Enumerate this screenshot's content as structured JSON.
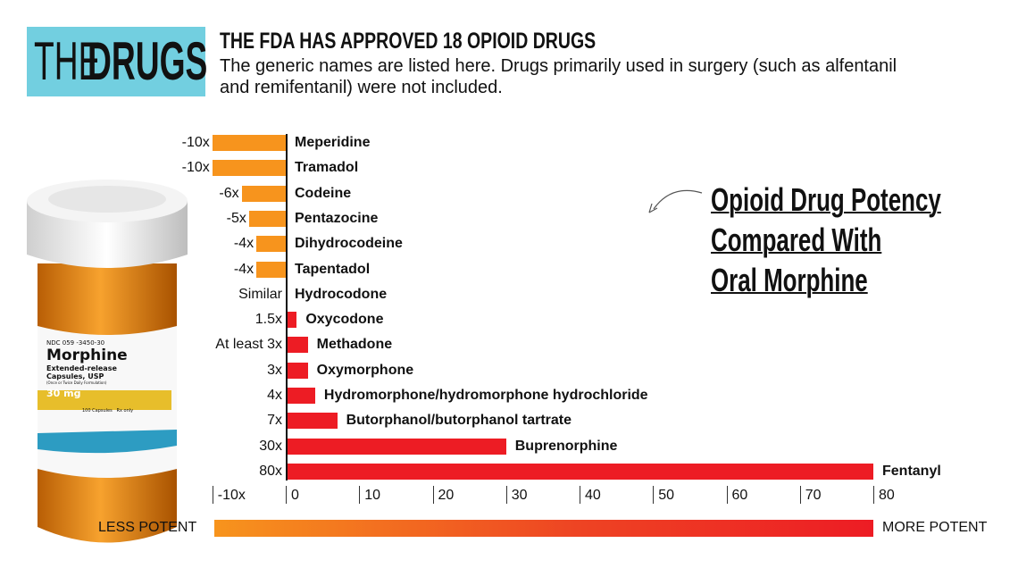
{
  "header": {
    "badge_light": "THE",
    "badge_bold": "DRUGS",
    "headline": "THE FDA HAS APPROVED 18 OPIOID DRUGS",
    "subtitle": "The generic names are listed here. Drugs primarily used in surgery (such as alfentanil and remifentanil) were not included."
  },
  "bottle_label": {
    "ndc": "NDC 059  -3450-30",
    "name": "Morphine",
    "desc1": "Extended-release",
    "desc2": "Capsules, USP",
    "desc3": "(Once or Twice Daily Formulation)",
    "dose": "30 mg",
    "count": "100 Capsules",
    "rx": "Rx only"
  },
  "chart_data": {
    "type": "bar",
    "orientation": "horizontal",
    "title": [
      "Opioid Drug Potency",
      "Compared With",
      "Oral Morphine"
    ],
    "categories": [
      "Meperidine",
      "Tramadol",
      "Codeine",
      "Pentazocine",
      "Dihydrocodeine",
      "Tapentadol",
      "Hydrocodone",
      "Oxycodone",
      "Methadone",
      "Oxymorphone",
      "Hydromorphone/hydromorphone hydrochloride",
      "Butorphanol/butorphanol tartrate",
      "Buprenorphine",
      "Fentanyl"
    ],
    "values": [
      -10,
      -10,
      -6,
      -5,
      -4,
      -4,
      0,
      1.5,
      3,
      3,
      4,
      7,
      30,
      80
    ],
    "value_labels": [
      "-10x",
      "-10x",
      "-6x",
      "-5x",
      "-4x",
      "-4x",
      "Similar",
      "1.5x",
      "At least 3x",
      "3x",
      "4x",
      "7x",
      "30x",
      "80x"
    ],
    "xlim": [
      -10,
      80
    ],
    "tick_labels": [
      "-10x",
      "0",
      "10",
      "20",
      "30",
      "40",
      "50",
      "60",
      "70",
      "80"
    ],
    "scale_labels": {
      "left": "LESS POTENT",
      "right": "MORE POTENT"
    },
    "colors": {
      "less": "#f7941d",
      "more": "#ed1c24"
    }
  }
}
